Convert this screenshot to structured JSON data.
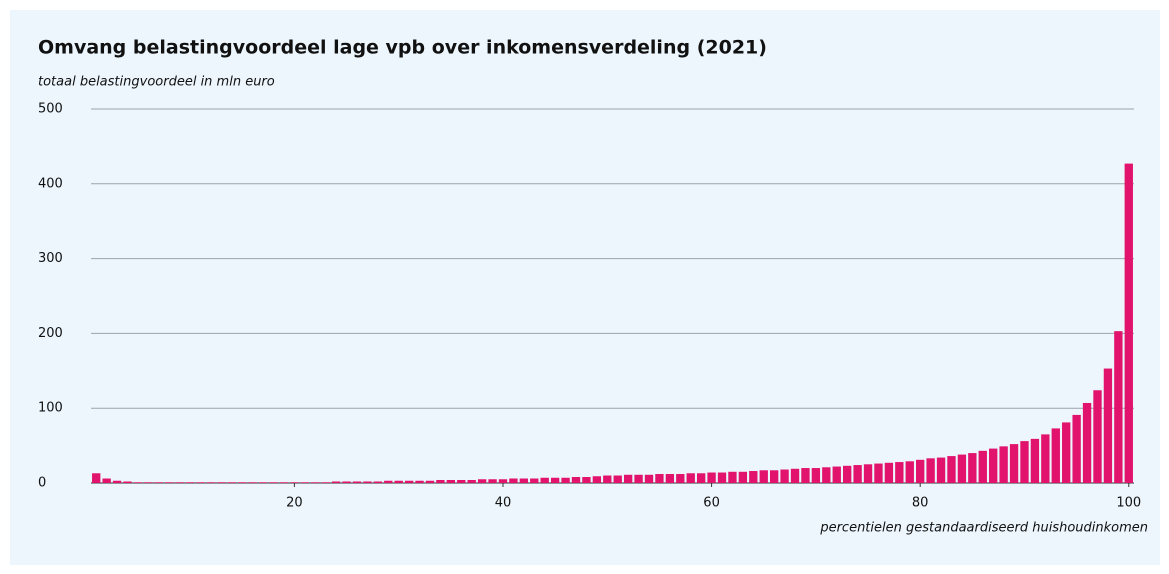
{
  "chart_data": {
    "type": "bar",
    "title": "Omvang belastingvoordeel lage vpb over inkomensverdeling (2021)",
    "y_label": "totaal belastingvoordeel in mln euro",
    "x_label": "percentielen gestandaardiseerd huishoudinkomen",
    "x": [
      1,
      2,
      3,
      4,
      5,
      6,
      7,
      8,
      9,
      10,
      11,
      12,
      13,
      14,
      15,
      16,
      17,
      18,
      19,
      20,
      21,
      22,
      23,
      24,
      25,
      26,
      27,
      28,
      29,
      30,
      31,
      32,
      33,
      34,
      35,
      36,
      37,
      38,
      39,
      40,
      41,
      42,
      43,
      44,
      45,
      46,
      47,
      48,
      49,
      50,
      51,
      52,
      53,
      54,
      55,
      56,
      57,
      58,
      59,
      60,
      61,
      62,
      63,
      64,
      65,
      66,
      67,
      68,
      69,
      70,
      71,
      72,
      73,
      74,
      75,
      76,
      77,
      78,
      79,
      80,
      81,
      82,
      83,
      84,
      85,
      86,
      87,
      88,
      89,
      90,
      91,
      92,
      93,
      94,
      95,
      96,
      97,
      98,
      99,
      100
    ],
    "values": [
      13,
      6,
      3,
      2,
      1,
      1,
      1,
      1,
      1,
      1,
      1,
      1,
      1,
      1,
      1,
      1,
      1,
      1,
      1,
      1,
      1,
      1,
      1,
      2,
      2,
      2,
      2,
      2,
      3,
      3,
      3,
      3,
      3,
      4,
      4,
      4,
      4,
      5,
      5,
      5,
      6,
      6,
      6,
      7,
      7,
      7,
      8,
      8,
      9,
      10,
      10,
      11,
      11,
      11,
      12,
      12,
      12,
      13,
      13,
      14,
      14,
      15,
      15,
      16,
      17,
      17,
      18,
      19,
      20,
      20,
      21,
      22,
      23,
      24,
      25,
      26,
      27,
      28,
      29,
      31,
      33,
      34,
      36,
      38,
      40,
      43,
      46,
      49,
      52,
      56,
      59,
      65,
      73,
      81,
      91,
      107,
      124,
      153,
      203,
      427
    ],
    "color": "#e1136c",
    "xlim": [
      0.5,
      100.5
    ],
    "xticks": [
      20,
      40,
      60,
      80,
      100
    ],
    "ylim": [
      0,
      500
    ],
    "yticks": [
      0,
      100,
      200,
      300,
      400,
      500
    ],
    "grid": true
  }
}
